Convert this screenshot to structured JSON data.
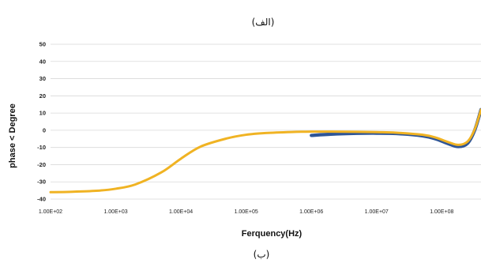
{
  "captions": {
    "top": "(الف)",
    "bottom": "(ب)"
  },
  "chart_data": {
    "type": "line",
    "title": "",
    "xlabel": "Ferquency(Hz)",
    "ylabel": "phase < Degree",
    "x_scale": "log",
    "xlim": [
      100,
      400000000
    ],
    "ylim": [
      -40,
      50
    ],
    "x_ticks": [
      100,
      1000,
      10000,
      100000,
      1000000,
      10000000,
      100000000
    ],
    "x_tick_labels": [
      "1.00E+02",
      "1.00E+03",
      "1.00E+04",
      "1.00E+05",
      "1.00E+06",
      "1.00E+07",
      "1.00E+08"
    ],
    "y_ticks": [
      -40,
      -30,
      -20,
      -10,
      0,
      10,
      20,
      30,
      40,
      50
    ],
    "grid": true,
    "legend": "none",
    "series": [
      {
        "color": "#2e5597",
        "x": [
          1000000,
          2000000,
          5000000,
          10000000,
          20000000,
          50000000,
          80000000,
          120000000,
          180000000,
          250000000,
          320000000,
          400000000
        ],
        "y": [
          -3,
          -2.3,
          -1.8,
          -1.7,
          -1.9,
          -3.2,
          -5,
          -7.5,
          -9.5,
          -7.5,
          0,
          12
        ]
      },
      {
        "color": "#f0b323",
        "x": [
          100,
          200,
          500,
          1000,
          2000,
          5000,
          10000,
          20000,
          50000,
          100000,
          200000,
          500000,
          1000000,
          2000000,
          5000000,
          10000000,
          20000000,
          50000000,
          80000000,
          120000000,
          180000000,
          250000000,
          320000000,
          400000000
        ],
        "y": [
          -36,
          -35.8,
          -35.2,
          -34,
          -31.5,
          -24.5,
          -16.5,
          -9.5,
          -4.8,
          -2.6,
          -1.6,
          -1.0,
          -0.8,
          -0.8,
          -0.9,
          -1.1,
          -1.4,
          -2.6,
          -4.2,
          -6.6,
          -8.5,
          -6.5,
          0.5,
          12
        ]
      }
    ]
  }
}
